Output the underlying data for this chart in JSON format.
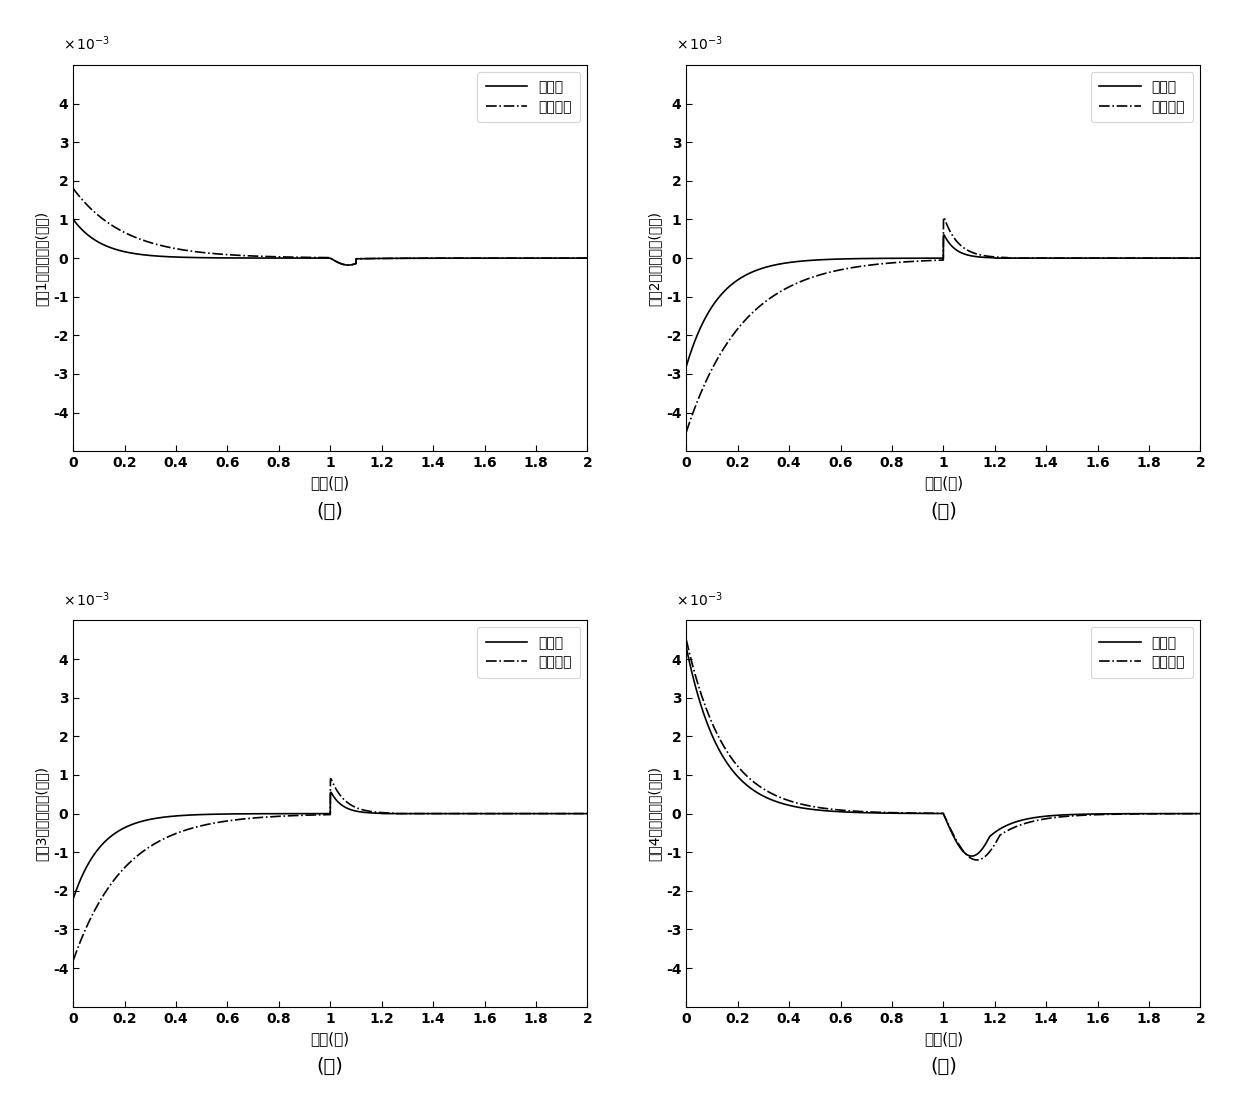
{
  "xlim": [
    0,
    2
  ],
  "ylim": [
    -0.005,
    0.005
  ],
  "ytick_vals": [
    -0.004,
    -0.003,
    -0.002,
    -0.001,
    0,
    0.001,
    0.002,
    0.003,
    0.004
  ],
  "ytick_labels": [
    "-4",
    "-3",
    "-2",
    "-1",
    "0",
    "1",
    "2",
    "3",
    "4"
  ],
  "xtick_vals": [
    0,
    0.2,
    0.4,
    0.6,
    0.8,
    1.0,
    1.2,
    1.4,
    1.6,
    1.8,
    2.0
  ],
  "xtick_labels": [
    "0",
    "0.2",
    "0.4",
    "0.6",
    "0.8",
    "1",
    "1.2",
    "1.4",
    "1.6",
    "1.8",
    "2"
  ],
  "xlabel": "时间(秒)",
  "ylabels": [
    "电机1的同步误差(弧度)",
    "电机2的同步误差(弧度)",
    "电机3的同步误差(弧度)",
    "电机4的同步误差(弧度)"
  ],
  "sublabels": [
    "(ａ)",
    "(ｂ)",
    "(ｃ)",
    "(ｄ)"
  ],
  "legend_solid": "本发明",
  "legend_dashdot": "平行控制",
  "background_color": "#ffffff",
  "line_color": "#000000",
  "scale_label": "x 10⁻³"
}
